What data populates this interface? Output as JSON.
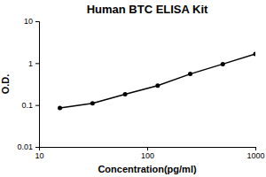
{
  "chart_data": {
    "type": "line",
    "title": "Human BTC ELISA Kit",
    "x_label": "Concentration(pg/ml)",
    "y_label": "O.D.",
    "x": [
      15.6,
      31.25,
      62.5,
      125,
      250,
      500,
      1000
    ],
    "values": [
      0.085,
      0.11,
      0.18,
      0.29,
      0.55,
      0.95,
      1.65
    ],
    "color": "#000000",
    "marker": "circle",
    "line_style": "solid",
    "log": true,
    "grid": false,
    "xlim": [
      10,
      1000
    ],
    "xticks": [
      10,
      100,
      1000
    ],
    "ylim": [
      0.01,
      10
    ],
    "yticks": [
      0.01,
      0.1,
      1,
      10
    ]
  }
}
